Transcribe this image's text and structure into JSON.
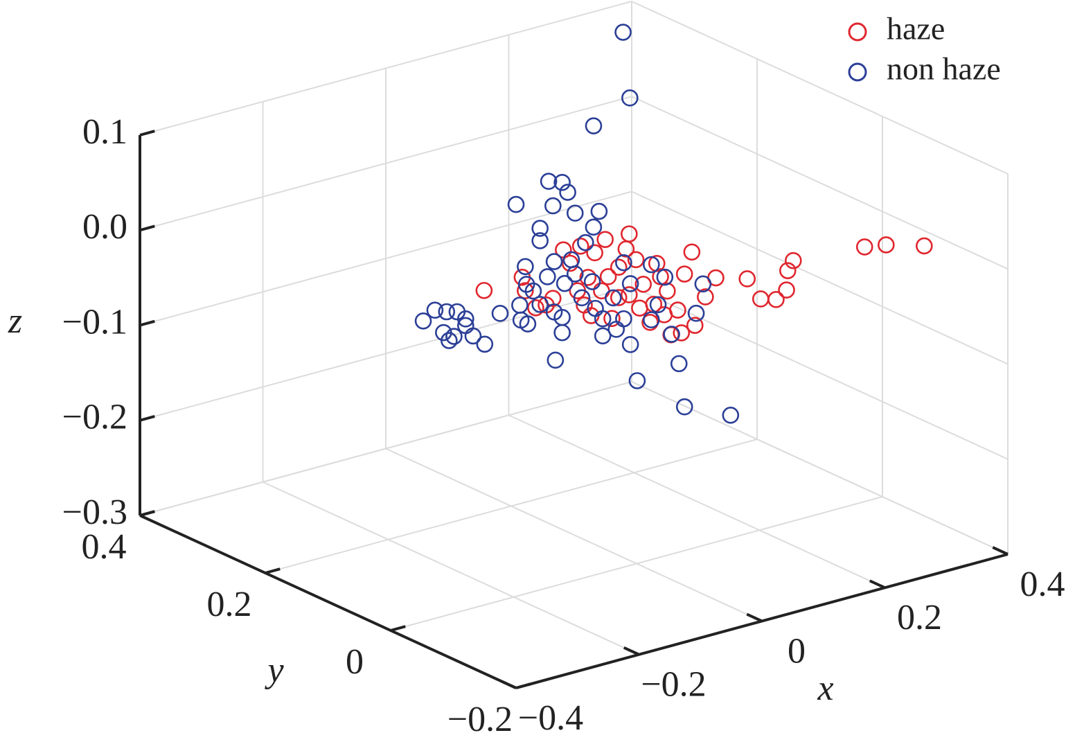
{
  "chart_data": {
    "type": "scatter3d",
    "xlabel": "x",
    "ylabel": "y",
    "zlabel": "z",
    "xlim": [
      -0.4,
      0.4
    ],
    "ylim": [
      -0.2,
      0.4
    ],
    "zlim": [
      -0.3,
      0.1
    ],
    "xticks": [
      {
        "value": -0.4,
        "label": "−0.4"
      },
      {
        "value": -0.2,
        "label": "−0.2"
      },
      0,
      0.2,
      0.4
    ],
    "yticks": [
      {
        "value": -0.2,
        "label": "−0.2"
      },
      0,
      0.2,
      0.4
    ],
    "zticks": [
      {
        "value": -0.3,
        "label": "−0.3"
      },
      {
        "value": -0.2,
        "label": "−0.2"
      },
      {
        "value": -0.1,
        "label": "−0.1"
      },
      {
        "value": 0,
        "label": "0.0"
      },
      0.1
    ],
    "grid": true,
    "legend": "northeast",
    "series": [
      {
        "name": "haze",
        "color": "#e0262e",
        "x": [
          0.269,
          0.304,
          0.366,
          0.153,
          0.144,
          0.142,
          0.125,
          0.1,
          0.078,
          0.027,
          0.01,
          -0.012,
          -0.007,
          -0.029,
          -0.046,
          -0.035,
          -0.057,
          -0.074,
          -0.069,
          -0.063,
          -0.091,
          -0.103,
          -0.114,
          -0.119,
          -0.131,
          -0.148,
          -0.153,
          -0.159,
          -0.17,
          -0.181,
          -0.187,
          -0.176,
          -0.198,
          -0.21,
          -0.221,
          -0.238,
          -0.249,
          -0.266,
          -0.283,
          -0.288,
          -0.35,
          -0.08,
          -0.024,
          -0.052,
          -0.097,
          -0.131,
          -0.142,
          -0.193,
          -0.114
        ],
        "y": [
          -0.1,
          -0.1,
          -0.1,
          -0.1,
          -0.1,
          -0.1,
          -0.1,
          -0.1,
          -0.1,
          -0.1,
          -0.1,
          -0.1,
          -0.1,
          -0.1,
          -0.1,
          -0.1,
          -0.1,
          -0.1,
          -0.1,
          -0.1,
          -0.1,
          -0.1,
          -0.1,
          -0.1,
          -0.1,
          -0.1,
          -0.1,
          -0.1,
          -0.1,
          -0.1,
          -0.1,
          -0.1,
          -0.1,
          -0.1,
          -0.1,
          -0.1,
          -0.1,
          -0.1,
          -0.1,
          -0.1,
          -0.1,
          -0.1,
          -0.1,
          -0.1,
          -0.1,
          -0.1,
          -0.1,
          -0.1,
          -0.1
        ],
        "z": [
          0.016,
          0.012,
          0.0,
          0.022,
          0.013,
          -0.007,
          -0.014,
          -0.009,
          0.016,
          0.026,
          0.009,
          0.06,
          -0.018,
          -0.022,
          -0.021,
          0.003,
          0.002,
          0.016,
          0.058,
          0.043,
          0.04,
          0.068,
          0.097,
          0.082,
          0.065,
          0.058,
          0.098,
          0.045,
          0.087,
          0.063,
          0.035,
          0.022,
          0.052,
          0.083,
          0.099,
          0.051,
          0.046,
          0.046,
          0.067,
          0.082,
          0.079,
          -0.002,
          0.039,
          0.026,
          0.016,
          0.033,
          0.013,
          0.098,
          0.033
        ]
      },
      {
        "name": "non haze",
        "color": "#2b3f97",
        "x": [
          -0.245,
          -0.226,
          -0.207,
          -0.19,
          -0.176,
          -0.176,
          -0.212,
          -0.203,
          -0.195,
          -0.164,
          -0.145,
          -0.12,
          -0.094,
          -0.088,
          -0.086,
          -0.075,
          -0.079,
          -0.055,
          -0.055,
          -0.041,
          -0.019,
          -0.01,
          -0.034,
          0.002,
          0.041,
          0.032,
          0.019,
          -0.004,
          -0.032,
          -0.015,
          -0.043,
          -0.066,
          -0.055,
          -0.032,
          -0.019,
          -0.019,
          -0.03,
          0.013,
          0.035,
          0.047,
          0.047,
          0.069,
          0.092,
          0.103,
          0.171,
          0.18,
          0.255,
          0.199,
          0.21,
          0.148,
          0.137,
          0.126,
          0.159,
          0.092,
          0.081,
          0.002,
          -0.077,
          0.03,
          0.064,
          0.081,
          0.126,
          0.386,
          0.397,
          0.338
        ],
        "y": [
          0.1,
          0.1,
          0.1,
          0.1,
          0.1,
          0.1,
          0.1,
          0.1,
          0.1,
          0.1,
          0.1,
          0.1,
          0.1,
          0.1,
          0.1,
          0.1,
          0.1,
          0.1,
          0.1,
          0.1,
          0.1,
          0.1,
          0.1,
          0.1,
          0.1,
          0.1,
          0.1,
          0.1,
          0.1,
          0.1,
          0.1,
          0.1,
          0.1,
          0.1,
          0.1,
          0.1,
          0.1,
          0.1,
          0.1,
          0.1,
          0.1,
          0.1,
          0.1,
          0.1,
          0.1,
          0.1,
          0.1,
          0.1,
          0.1,
          0.1,
          0.1,
          0.1,
          0.1,
          0.1,
          0.1,
          0.1,
          0.1,
          0.1,
          0.1,
          0.1,
          0.1,
          0.4,
          0.4,
          0.4
        ],
        "z": [
          -0.032,
          -0.024,
          -0.029,
          -0.032,
          -0.042,
          -0.049,
          -0.05,
          -0.06,
          -0.057,
          -0.062,
          -0.074,
          -0.046,
          0.064,
          -0.043,
          -0.059,
          -0.065,
          -0.004,
          0.032,
          0.019,
          0.079,
          0.074,
          0.062,
          0.052,
          0.038,
          0.033,
          0.018,
          0.004,
          -0.01,
          -0.007,
          -0.033,
          -0.021,
          -0.032,
          -0.048,
          -0.06,
          -0.068,
          -0.084,
          -0.111,
          -0.053,
          -0.068,
          -0.081,
          -0.099,
          -0.096,
          -0.116,
          -0.156,
          -0.15,
          -0.197,
          -0.219,
          -0.102,
          -0.073,
          -0.055,
          -0.082,
          -0.096,
          -0.117,
          -0.052,
          -0.028,
          -0.026,
          -0.023,
          -0.039,
          -0.062,
          -0.087,
          -0.038,
          0.07,
          -0.001,
          -0.02
        ]
      }
    ]
  }
}
